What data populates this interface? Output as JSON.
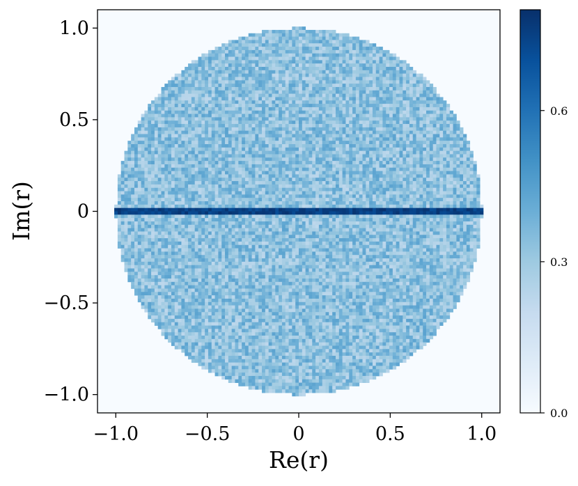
{
  "chart_data": {
    "type": "heatmap",
    "title": "",
    "xlabel": "Re(r)",
    "ylabel": "Im(r)",
    "xlim": [
      -1.1,
      1.1
    ],
    "ylim": [
      -1.1,
      1.1
    ],
    "x_ticks": [
      -1.0,
      -0.5,
      0,
      0.5,
      1.0
    ],
    "x_tick_labels": [
      "−1.0",
      "−0.5",
      "0",
      "0.5",
      "1.0"
    ],
    "y_ticks": [
      1.0,
      0.5,
      0,
      -0.5,
      -1.0
    ],
    "y_tick_labels": [
      "1.0",
      "0.5",
      "0",
      "−0.5",
      "−1.0"
    ],
    "colorbar": {
      "colormap": "Blues",
      "range": [
        0.0,
        0.8
      ],
      "ticks": [
        0.0,
        0.3,
        0.6
      ],
      "tick_labels": [
        "0.0",
        "0.3",
        "0.6"
      ]
    },
    "density_description": {
      "support": "unit disk |r| <= 1",
      "disk_density_typical": 0.33,
      "real_axis_line_density": 0.75,
      "outside_disk_density": 0.0
    },
    "grid": false,
    "legend": "none"
  },
  "colors": {
    "cmap_low": "#f7fbff",
    "cmap_mid": "#6baed6",
    "cmap_high": "#08306b",
    "axis": "#000000"
  }
}
